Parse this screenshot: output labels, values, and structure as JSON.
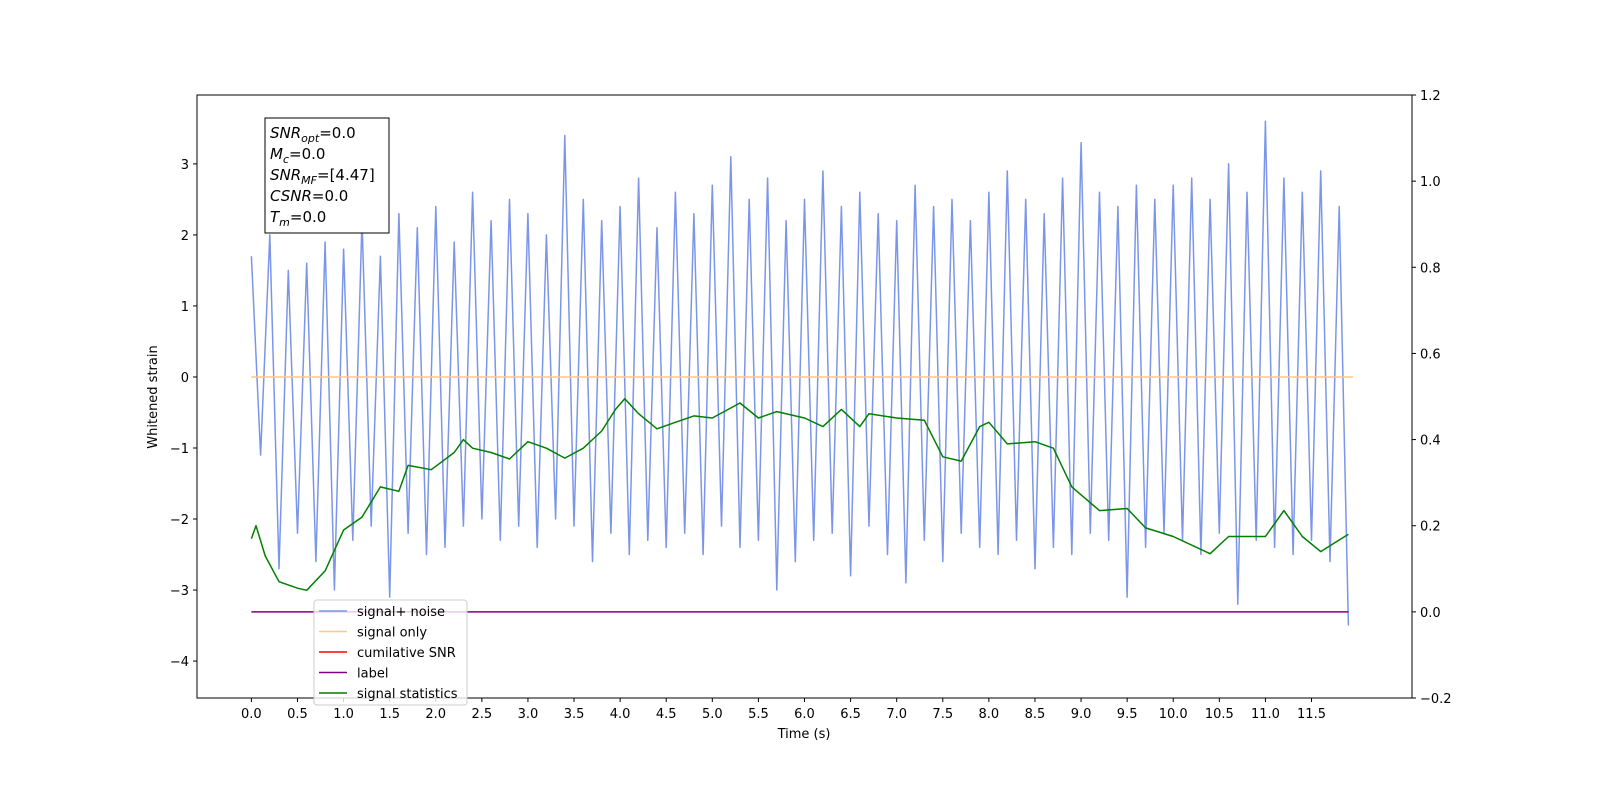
{
  "chart_data": {
    "type": "line",
    "xlabel": "Time (s)",
    "ylabel": "Whitened strain",
    "xlim": [
      -0.59,
      12.59
    ],
    "ylim": [
      -4.52,
      3.97
    ],
    "y2lim": [
      -0.2,
      1.2
    ],
    "xticks": [
      {
        "value": 0,
        "label": "0.0"
      },
      {
        "value": 0.5,
        "label": "0.5"
      },
      {
        "value": 1,
        "label": "1.0"
      },
      {
        "value": 1.5,
        "label": "1.5"
      },
      {
        "value": 2,
        "label": "2.0"
      },
      {
        "value": 2.5,
        "label": "2.5"
      },
      {
        "value": 3,
        "label": "3.0"
      },
      {
        "value": 3.5,
        "label": "3.5"
      },
      {
        "value": 4,
        "label": "4.0"
      },
      {
        "value": 4.5,
        "label": "4.5"
      },
      {
        "value": 5,
        "label": "5.0"
      },
      {
        "value": 5.5,
        "label": "5.5"
      },
      {
        "value": 6,
        "label": "6.0"
      },
      {
        "value": 6.5,
        "label": "6.5"
      },
      {
        "value": 7,
        "label": "7.0"
      },
      {
        "value": 7.5,
        "label": "7.5"
      },
      {
        "value": 8,
        "label": "8.0"
      },
      {
        "value": 8.5,
        "label": "8.5"
      },
      {
        "value": 9,
        "label": "9.0"
      },
      {
        "value": 9.5,
        "label": "9.5"
      },
      {
        "value": 10,
        "label": "10.0"
      },
      {
        "value": 10.5,
        "label": "10.5"
      },
      {
        "value": 11,
        "label": "11.0"
      },
      {
        "value": 11.5,
        "label": "11.5"
      }
    ],
    "yticks": [
      {
        "value": -4,
        "label": "−4"
      },
      {
        "value": -3,
        "label": "−3"
      },
      {
        "value": -2,
        "label": "−2"
      },
      {
        "value": -1,
        "label": "−1"
      },
      0,
      1,
      2,
      3
    ],
    "y2ticks": [
      {
        "value": -0.2,
        "label": "−0.2"
      },
      {
        "value": 0,
        "label": "0.0"
      },
      {
        "value": 0.2,
        "label": "0.2"
      },
      {
        "value": 0.4,
        "label": "0.4"
      },
      {
        "value": 0.6,
        "label": "0.6"
      },
      {
        "value": 0.8,
        "label": "0.8"
      },
      {
        "value": 1,
        "label": "1.0"
      },
      {
        "value": 1.2,
        "label": "1.2"
      }
    ],
    "annotation": [
      {
        "main": "SNR",
        "sub": "opt",
        "rest": "=0.0"
      },
      {
        "main": "M",
        "sub": "c",
        "rest": "=0.0"
      },
      {
        "main": "SNR",
        "sub": "MF",
        "rest": "=[4.47]"
      },
      {
        "main": "CSNR",
        "rest": "=0.0"
      },
      {
        "main": "T",
        "sub": "m",
        "rest": "=0.0"
      }
    ],
    "series": [
      {
        "name": "signal+ noise",
        "color": "#7b96e8",
        "x": [
          0,
          0.1,
          0.2,
          0.3,
          0.4,
          0.5,
          0.6,
          0.7,
          0.8,
          0.9,
          1,
          1.1,
          1.2,
          1.3,
          1.4,
          1.5,
          1.6,
          1.7,
          1.8,
          1.9,
          2,
          2.1,
          2.2,
          2.3,
          2.4,
          2.5,
          2.6,
          2.7,
          2.8,
          2.9,
          3,
          3.1,
          3.2,
          3.3,
          3.4,
          3.5,
          3.6,
          3.7,
          3.8,
          3.9,
          4,
          4.1,
          4.2,
          4.3,
          4.4,
          4.5,
          4.6,
          4.7,
          4.8,
          4.9,
          5,
          5.1,
          5.2,
          5.3,
          5.4,
          5.5,
          5.6,
          5.7,
          5.8,
          5.9,
          6,
          6.1,
          6.2,
          6.3,
          6.4,
          6.5,
          6.6,
          6.7,
          6.8,
          6.9,
          7,
          7.1,
          7.2,
          7.3,
          7.4,
          7.5,
          7.6,
          7.7,
          7.8,
          7.9,
          8,
          8.1,
          8.2,
          8.3,
          8.4,
          8.5,
          8.6,
          8.7,
          8.8,
          8.9,
          9,
          9.1,
          9.2,
          9.3,
          9.4,
          9.5,
          9.6,
          9.7,
          9.8,
          9.9,
          10,
          10.1,
          10.2,
          10.3,
          10.4,
          10.5,
          10.6,
          10.7,
          10.8,
          10.9,
          11,
          11.1,
          11.2,
          11.3,
          11.4,
          11.5,
          11.6,
          11.7,
          11.8,
          11.9
        ],
        "values": [
          1.7,
          -1.1,
          2.0,
          -2.7,
          1.5,
          -2.2,
          1.6,
          -2.6,
          1.9,
          -3.0,
          1.8,
          -2.3,
          2.2,
          -2.1,
          1.7,
          -3.1,
          2.3,
          -2.2,
          2.1,
          -2.5,
          2.4,
          -2.4,
          1.9,
          -2.1,
          2.6,
          -2.0,
          2.2,
          -2.3,
          2.5,
          -2.1,
          2.3,
          -2.4,
          2.0,
          -2.0,
          3.4,
          -2.1,
          2.5,
          -2.6,
          2.2,
          -2.2,
          2.4,
          -2.5,
          2.8,
          -2.3,
          2.1,
          -2.4,
          2.6,
          -2.2,
          2.3,
          -2.5,
          2.7,
          -2.1,
          3.1,
          -2.4,
          2.5,
          -2.3,
          2.8,
          -3.0,
          2.2,
          -2.6,
          2.5,
          -2.3,
          2.9,
          -2.2,
          2.4,
          -2.8,
          2.6,
          -2.1,
          2.3,
          -2.5,
          2.2,
          -2.9,
          2.7,
          -2.3,
          2.4,
          -2.6,
          2.5,
          -2.2,
          2.2,
          -2.4,
          2.6,
          -2.5,
          2.9,
          -2.3,
          2.5,
          -2.7,
          2.3,
          -2.4,
          2.8,
          -2.5,
          3.3,
          -2.2,
          2.6,
          -2.3,
          2.4,
          -3.1,
          2.7,
          -2.4,
          2.5,
          -2.2,
          2.7,
          -2.3,
          2.8,
          -2.5,
          2.5,
          -2.2,
          3.0,
          -3.2,
          2.6,
          -2.3,
          3.6,
          -2.4,
          2.8,
          -2.5,
          2.6,
          -2.3,
          2.9,
          -2.6,
          2.4,
          -3.5
        ]
      },
      {
        "name": "signal only",
        "color": "#ffc87a",
        "x": [
          0,
          11.95
        ],
        "values": [
          0,
          0
        ]
      },
      {
        "name": "cumilative SNR",
        "color": "#ff0000",
        "x": [],
        "values": []
      },
      {
        "name": "label",
        "color": "#800080",
        "axis": "y2",
        "x": [
          0,
          11.9
        ],
        "values": [
          0,
          0
        ]
      },
      {
        "name": "signal statistics",
        "color": "#008000",
        "axis": "y2",
        "x": [
          0,
          0.05,
          0.15,
          0.3,
          0.5,
          0.6,
          0.8,
          1,
          1.2,
          1.4,
          1.6,
          1.7,
          1.95,
          2.2,
          2.3,
          2.4,
          2.6,
          2.8,
          3,
          3.2,
          3.4,
          3.6,
          3.8,
          3.95,
          4.05,
          4.2,
          4.4,
          4.6,
          4.8,
          5,
          5.3,
          5.5,
          5.7,
          6,
          6.2,
          6.4,
          6.6,
          6.7,
          7,
          7.3,
          7.5,
          7.7,
          7.9,
          8,
          8.2,
          8.5,
          8.7,
          8.9,
          9.2,
          9.5,
          9.7,
          10,
          10.4,
          10.6,
          10.8,
          11,
          11.2,
          11.4,
          11.6,
          11.75,
          11.9
        ],
        "values": [
          0.17,
          0.2,
          0.13,
          0.07,
          0.055,
          0.05,
          0.095,
          0.19,
          0.22,
          0.29,
          0.28,
          0.34,
          0.33,
          0.37,
          0.4,
          0.38,
          0.37,
          0.355,
          0.395,
          0.38,
          0.357,
          0.38,
          0.42,
          0.47,
          0.495,
          0.46,
          0.425,
          0.44,
          0.455,
          0.45,
          0.485,
          0.45,
          0.465,
          0.45,
          0.43,
          0.47,
          0.43,
          0.46,
          0.45,
          0.445,
          0.36,
          0.35,
          0.43,
          0.44,
          0.39,
          0.395,
          0.38,
          0.29,
          0.235,
          0.24,
          0.195,
          0.175,
          0.135,
          0.175,
          0.175,
          0.175,
          0.235,
          0.175,
          0.14,
          0.16,
          0.18
        ]
      }
    ]
  }
}
